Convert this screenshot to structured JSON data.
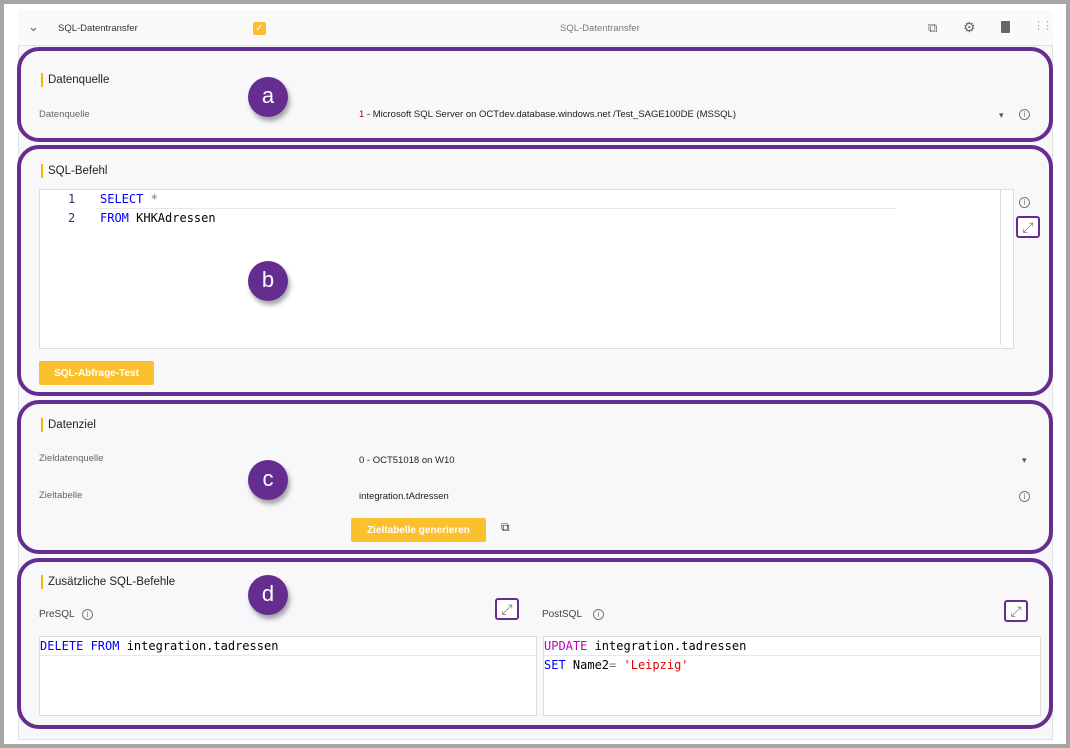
{
  "header": {
    "title": "SQL-Datentransfer",
    "center_title": "SQL-Datentransfer",
    "enabled": true,
    "icons": [
      "chevron-down-icon",
      "copy-icon",
      "gear-icon",
      "trash-icon",
      "drag-handle-icon"
    ]
  },
  "colors": {
    "accent": "#fbc02d",
    "annotation": "#662d91"
  },
  "datenquelle": {
    "badge": "a",
    "title": "Datenquelle",
    "label": "Datenquelle",
    "value_num": "1",
    "value_rest": " - Microsoft SQL Server on OCTdev.database.windows.net /Test_SAGE100DE (MSSQL)"
  },
  "sql": {
    "badge": "b",
    "title": "SQL-Befehl",
    "lines": [
      {
        "n": "1",
        "kw": "SELECT",
        "rest": " *"
      },
      {
        "n": "2",
        "kw": "FROM",
        "rest": " KHKAdressen"
      }
    ],
    "test_button": "SQL-Abfrage-Test"
  },
  "datenziel": {
    "badge": "c",
    "title": "Datenziel",
    "ziel_label": "Zieldatenquelle",
    "ziel_value": "0 - OCT51018 on W10",
    "tabelle_label": "Zieltabelle",
    "tabelle_value": "integration.tAdressen",
    "generate_button": "Zieltabelle generieren"
  },
  "extra": {
    "badge": "d",
    "title": "Zusätzliche SQL-Befehle",
    "pre_label": "PreSQL",
    "post_label": "PostSQL",
    "pre": {
      "kw": "DELETE FROM",
      "rest": " integration.tadressen"
    },
    "post": {
      "line1_kw": "UPDATE",
      "line1_rest": " integration.tadressen",
      "line2_kw": "SET",
      "line2_mid": " Name2",
      "line2_op": "=",
      "line2_str": " 'Leipzig'"
    }
  }
}
